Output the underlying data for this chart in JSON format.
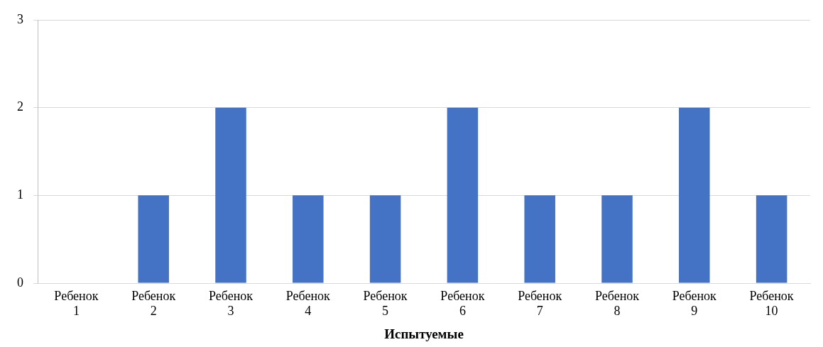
{
  "chart_data": {
    "type": "bar",
    "xlabel": "Испытуемые",
    "categories": [
      "Ребенок 1",
      "Ребенок 2",
      "Ребенок 3",
      "Ребенок 4",
      "Ребенок 5",
      "Ребенок 6",
      "Ребенок 7",
      "Ребенок 8",
      "Ребенок 9",
      "Ребенок 10"
    ],
    "values": [
      0,
      1,
      2,
      1,
      1,
      2,
      1,
      1,
      2,
      1
    ],
    "color": "#4472c4",
    "ylim": [
      0,
      3
    ],
    "yticks": [
      0,
      1,
      2,
      3
    ],
    "grid": "y",
    "legend": false
  }
}
